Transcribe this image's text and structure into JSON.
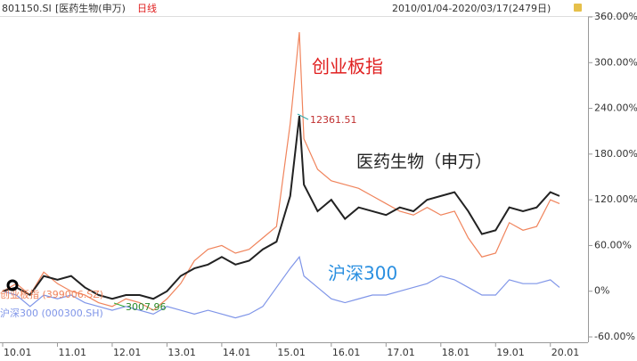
{
  "header": {
    "code": "801150.SI",
    "name": "[医药生物(申万)",
    "period": "日线",
    "range": "2010/01/04-2020/03/17(2479日)"
  },
  "chart_data": {
    "type": "line",
    "x": [
      "2010-01",
      "2010-04",
      "2010-07",
      "2010-10",
      "2011-01",
      "2011-04",
      "2011-07",
      "2011-10",
      "2012-01",
      "2012-04",
      "2012-07",
      "2012-10",
      "2013-01",
      "2013-04",
      "2013-07",
      "2013-10",
      "2014-01",
      "2014-04",
      "2014-07",
      "2014-10",
      "2015-01",
      "2015-04",
      "2015-06",
      "2015-07",
      "2015-10",
      "2016-01",
      "2016-04",
      "2016-07",
      "2016-10",
      "2017-01",
      "2017-04",
      "2017-07",
      "2017-10",
      "2018-01",
      "2018-04",
      "2018-07",
      "2018-10",
      "2019-01",
      "2019-04",
      "2019-07",
      "2019-10",
      "2020-01",
      "2020-03"
    ],
    "series": [
      {
        "name": "创业板指 (399006.SZ)",
        "color": "#f0845c",
        "values": [
          0,
          10,
          -5,
          25,
          10,
          0,
          -5,
          -15,
          -20,
          -10,
          -15,
          -25,
          -10,
          10,
          40,
          55,
          60,
          50,
          55,
          70,
          85,
          220,
          340,
          200,
          160,
          145,
          140,
          135,
          125,
          115,
          105,
          100,
          110,
          100,
          105,
          70,
          45,
          50,
          90,
          80,
          85,
          120,
          115
        ]
      },
      {
        "name": "沪深300 (000300.SH)",
        "color": "#7f95e8",
        "values": [
          0,
          -5,
          -20,
          -5,
          -10,
          -5,
          -15,
          -20,
          -25,
          -20,
          -25,
          -30,
          -20,
          -25,
          -30,
          -25,
          -30,
          -35,
          -30,
          -20,
          5,
          30,
          45,
          20,
          5,
          -10,
          -15,
          -10,
          -5,
          -5,
          0,
          5,
          10,
          20,
          15,
          5,
          -5,
          -5,
          15,
          10,
          10,
          15,
          5
        ]
      },
      {
        "name": "医药生物（申万）",
        "color": "#222222",
        "values": [
          0,
          5,
          -5,
          20,
          15,
          20,
          5,
          -5,
          -10,
          -5,
          -5,
          -10,
          0,
          20,
          30,
          35,
          45,
          35,
          40,
          55,
          65,
          125,
          230,
          140,
          105,
          120,
          95,
          110,
          105,
          100,
          110,
          105,
          120,
          125,
          130,
          105,
          75,
          80,
          110,
          105,
          110,
          130,
          125
        ]
      }
    ],
    "annotations": [
      "创业板指",
      "沪深300"
    ],
    "point_labels": [
      "12361.51",
      "3007.96"
    ],
    "ylim": [
      -60,
      360
    ],
    "yticks": [
      {
        "value": -60,
        "label": "-60.00%"
      },
      {
        "value": 0,
        "label": "0%"
      },
      {
        "value": 60,
        "label": "60.00%"
      },
      {
        "value": 120,
        "label": "120.00%"
      },
      {
        "value": 180,
        "label": "180.00%"
      },
      {
        "value": 240,
        "label": "240.00%"
      },
      {
        "value": 300,
        "label": "300.00%"
      },
      {
        "value": 360,
        "label": "360.00%"
      }
    ],
    "xticks": [
      {
        "value": "2010-01",
        "label": "10.01"
      },
      {
        "value": "2011-01",
        "label": "11.01"
      },
      {
        "value": "2012-01",
        "label": "12.01"
      },
      {
        "value": "2013-01",
        "label": "13.01"
      },
      {
        "value": "2014-01",
        "label": "14.01"
      },
      {
        "value": "2015-01",
        "label": "15.01"
      },
      {
        "value": "2016-01",
        "label": "16.01"
      },
      {
        "value": "2017-01",
        "label": "17.01"
      },
      {
        "value": "2018-01",
        "label": "18.01"
      },
      {
        "value": "2019-01",
        "label": "19.01"
      },
      {
        "value": "2020-01",
        "label": "20.01"
      }
    ]
  }
}
